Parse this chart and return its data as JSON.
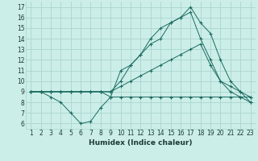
{
  "xlabel": "Humidex (Indice chaleur)",
  "background_color": "#cceee8",
  "grid_color": "#aad4ce",
  "line_color": "#1a6b60",
  "xlim": [
    0.5,
    23.5
  ],
  "ylim": [
    5.5,
    17.5
  ],
  "xticks": [
    1,
    2,
    3,
    4,
    5,
    6,
    7,
    8,
    9,
    10,
    11,
    12,
    13,
    14,
    15,
    16,
    17,
    18,
    19,
    20,
    21,
    22,
    23
  ],
  "yticks": [
    6,
    7,
    8,
    9,
    10,
    11,
    12,
    13,
    14,
    15,
    16,
    17
  ],
  "lines": [
    {
      "x": [
        1,
        2,
        3,
        4,
        5,
        6,
        7,
        8,
        9,
        10,
        11,
        12,
        13,
        14,
        15,
        16,
        17,
        18,
        19,
        20,
        21,
        22,
        23
      ],
      "y": [
        9,
        9,
        8.5,
        8,
        7,
        6,
        6.2,
        7.5,
        8.5,
        8.5,
        8.5,
        8.5,
        8.5,
        8.5,
        8.5,
        8.5,
        8.5,
        8.5,
        8.5,
        8.5,
        8.5,
        8.5,
        8.5
      ],
      "marker": "+"
    },
    {
      "x": [
        1,
        2,
        3,
        4,
        5,
        6,
        7,
        8,
        9,
        10,
        11,
        12,
        13,
        14,
        15,
        16,
        17,
        18,
        19,
        20,
        21,
        22,
        23
      ],
      "y": [
        9,
        9,
        9,
        9,
        9,
        9,
        9,
        9,
        9,
        9.5,
        10,
        10.5,
        11,
        11.5,
        12,
        12.5,
        13,
        13.5,
        11.5,
        10,
        9,
        8.5,
        8
      ],
      "marker": "+"
    },
    {
      "x": [
        1,
        2,
        3,
        4,
        5,
        6,
        7,
        8,
        9,
        10,
        11,
        12,
        13,
        14,
        15,
        16,
        17,
        18,
        19,
        20,
        21,
        22,
        23
      ],
      "y": [
        9,
        9,
        9,
        9,
        9,
        9,
        9,
        9,
        8.5,
        11,
        11.5,
        12.5,
        13.5,
        14,
        15.5,
        16,
        16.5,
        14,
        12,
        10,
        9.5,
        9,
        8
      ],
      "marker": "+"
    },
    {
      "x": [
        1,
        2,
        3,
        4,
        5,
        6,
        7,
        8,
        9,
        10,
        11,
        12,
        13,
        14,
        15,
        16,
        17,
        18,
        19,
        20,
        21,
        22,
        23
      ],
      "y": [
        9,
        9,
        9,
        9,
        9,
        9,
        9,
        9,
        9,
        10,
        11.5,
        12.5,
        14,
        15,
        15.5,
        16,
        17,
        15.5,
        14.5,
        12,
        10,
        9,
        8.5
      ],
      "marker": "+"
    }
  ]
}
